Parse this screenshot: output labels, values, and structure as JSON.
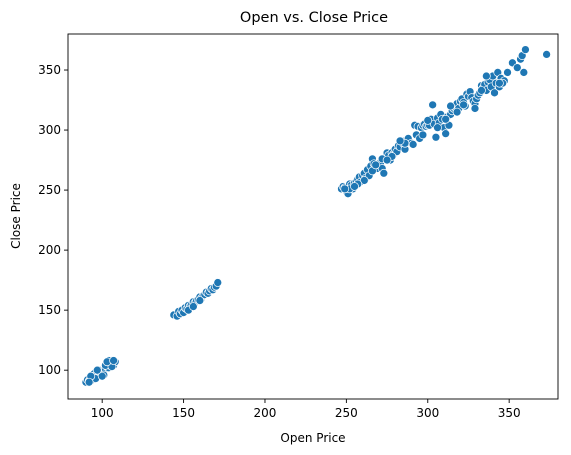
{
  "chart_data": {
    "type": "scatter",
    "title": "Open vs. Close Price",
    "xlabel": "Open Price",
    "ylabel": "Close Price",
    "xlim": [
      79,
      380
    ],
    "ylim": [
      76,
      380
    ],
    "xticks": [
      100,
      150,
      200,
      250,
      300,
      350
    ],
    "yticks": [
      100,
      150,
      200,
      250,
      300,
      350
    ],
    "grid": false,
    "marker_color": "#1f77b4",
    "series": [
      {
        "points": [
          [
            90,
            90
          ],
          [
            91,
            92
          ],
          [
            92,
            91
          ],
          [
            93,
            93
          ],
          [
            94,
            92
          ],
          [
            95,
            94
          ],
          [
            96,
            95
          ],
          [
            97,
            96
          ],
          [
            98,
            97
          ],
          [
            95,
            97
          ],
          [
            94,
            95
          ],
          [
            96,
            93
          ],
          [
            99,
            98
          ],
          [
            100,
            99
          ],
          [
            101,
            100
          ],
          [
            98,
            100
          ],
          [
            102,
            101
          ],
          [
            103,
            103
          ],
          [
            104,
            102
          ],
          [
            105,
            104
          ],
          [
            106,
            105
          ],
          [
            107,
            106
          ],
          [
            104,
            106
          ],
          [
            105,
            107
          ],
          [
            106,
            108
          ],
          [
            103,
            105
          ],
          [
            102,
            104
          ],
          [
            107,
            104
          ],
          [
            108,
            107
          ],
          [
            104,
            108
          ],
          [
            101,
            96
          ],
          [
            100,
            95
          ],
          [
            97,
            100
          ],
          [
            93,
            95
          ],
          [
            92,
            90
          ],
          [
            106,
            103
          ],
          [
            103,
            107
          ],
          [
            107,
            108
          ],
          [
            144,
            146
          ],
          [
            146,
            145
          ],
          [
            147,
            149
          ],
          [
            148,
            147
          ],
          [
            149,
            150
          ],
          [
            150,
            148
          ],
          [
            151,
            152
          ],
          [
            152,
            151
          ],
          [
            153,
            154
          ],
          [
            154,
            153
          ],
          [
            155,
            155
          ],
          [
            156,
            157
          ],
          [
            157,
            156
          ],
          [
            158,
            158
          ],
          [
            159,
            159
          ],
          [
            160,
            161
          ],
          [
            161,
            160
          ],
          [
            162,
            162
          ],
          [
            163,
            163
          ],
          [
            164,
            165
          ],
          [
            165,
            164
          ],
          [
            166,
            166
          ],
          [
            167,
            168
          ],
          [
            168,
            167
          ],
          [
            169,
            169
          ],
          [
            170,
            170
          ],
          [
            171,
            173
          ],
          [
            153,
            150
          ],
          [
            156,
            153
          ],
          [
            160,
            158
          ],
          [
            247,
            251
          ],
          [
            248,
            253
          ],
          [
            249,
            252
          ],
          [
            250,
            249
          ],
          [
            251,
            247
          ],
          [
            252,
            255
          ],
          [
            253,
            254
          ],
          [
            254,
            251
          ],
          [
            255,
            256
          ],
          [
            256,
            257
          ],
          [
            257,
            259
          ],
          [
            258,
            261
          ],
          [
            259,
            257
          ],
          [
            260,
            262
          ],
          [
            261,
            264
          ],
          [
            262,
            260
          ],
          [
            263,
            267
          ],
          [
            264,
            262
          ],
          [
            265,
            270
          ],
          [
            266,
            276
          ],
          [
            267,
            272
          ],
          [
            269,
            268
          ],
          [
            270,
            271
          ],
          [
            271,
            273
          ],
          [
            272,
            268
          ],
          [
            273,
            264
          ],
          [
            274,
            277
          ],
          [
            275,
            281
          ],
          [
            276,
            279
          ],
          [
            277,
            275
          ],
          [
            278,
            281
          ],
          [
            279,
            280
          ],
          [
            280,
            284
          ],
          [
            281,
            282
          ],
          [
            282,
            287
          ],
          [
            283,
            286
          ],
          [
            284,
            291
          ],
          [
            285,
            289
          ],
          [
            286,
            284
          ],
          [
            287,
            292
          ],
          [
            288,
            293
          ],
          [
            290,
            289
          ],
          [
            292,
            304
          ],
          [
            293,
            296
          ],
          [
            294,
            303
          ],
          [
            295,
            293
          ],
          [
            296,
            302
          ],
          [
            297,
            304
          ],
          [
            298,
            305
          ],
          [
            299,
            303
          ],
          [
            300,
            304
          ],
          [
            301,
            304
          ],
          [
            302,
            309
          ],
          [
            303,
            321
          ],
          [
            304,
            305
          ],
          [
            305,
            294
          ],
          [
            306,
            310
          ],
          [
            307,
            306
          ],
          [
            308,
            313
          ],
          [
            309,
            309
          ],
          [
            310,
            302
          ],
          [
            311,
            297
          ],
          [
            312,
            311
          ],
          [
            313,
            304
          ],
          [
            314,
            313
          ],
          [
            315,
            316
          ],
          [
            316,
            318
          ],
          [
            317,
            319
          ],
          [
            318,
            322
          ],
          [
            319,
            318
          ],
          [
            320,
            324
          ],
          [
            321,
            326
          ],
          [
            322,
            323
          ],
          [
            323,
            320
          ],
          [
            324,
            330
          ],
          [
            325,
            328
          ],
          [
            326,
            332
          ],
          [
            327,
            327
          ],
          [
            328,
            324
          ],
          [
            329,
            322
          ],
          [
            330,
            326
          ],
          [
            331,
            329
          ],
          [
            332,
            331
          ],
          [
            333,
            337
          ],
          [
            334,
            335
          ],
          [
            335,
            338
          ],
          [
            336,
            333
          ],
          [
            337,
            340
          ],
          [
            338,
            342
          ],
          [
            339,
            336
          ],
          [
            340,
            345
          ],
          [
            341,
            331
          ],
          [
            342,
            339
          ],
          [
            343,
            348
          ],
          [
            344,
            336
          ],
          [
            345,
            343
          ],
          [
            347,
            341
          ],
          [
            349,
            348
          ],
          [
            352,
            356
          ],
          [
            355,
            352
          ],
          [
            357,
            359
          ],
          [
            358,
            362
          ],
          [
            359,
            348
          ],
          [
            360,
            367
          ],
          [
            373,
            363
          ],
          [
            346,
            339
          ],
          [
            344,
            339
          ],
          [
            336,
            345
          ],
          [
            333,
            333
          ],
          [
            329,
            318
          ],
          [
            322,
            321
          ],
          [
            318,
            315
          ],
          [
            314,
            320
          ],
          [
            311,
            309
          ],
          [
            306,
            302
          ],
          [
            300,
            308
          ],
          [
            297,
            296
          ],
          [
            291,
            288
          ],
          [
            286,
            289
          ],
          [
            283,
            291
          ],
          [
            278,
            278
          ],
          [
            272,
            276
          ],
          [
            266,
            266
          ],
          [
            261,
            258
          ],
          [
            257,
            255
          ],
          [
            252,
            251
          ],
          [
            249,
            251
          ],
          [
            255,
            253
          ],
          [
            268,
            271
          ],
          [
            275,
            275
          ]
        ]
      }
    ]
  }
}
